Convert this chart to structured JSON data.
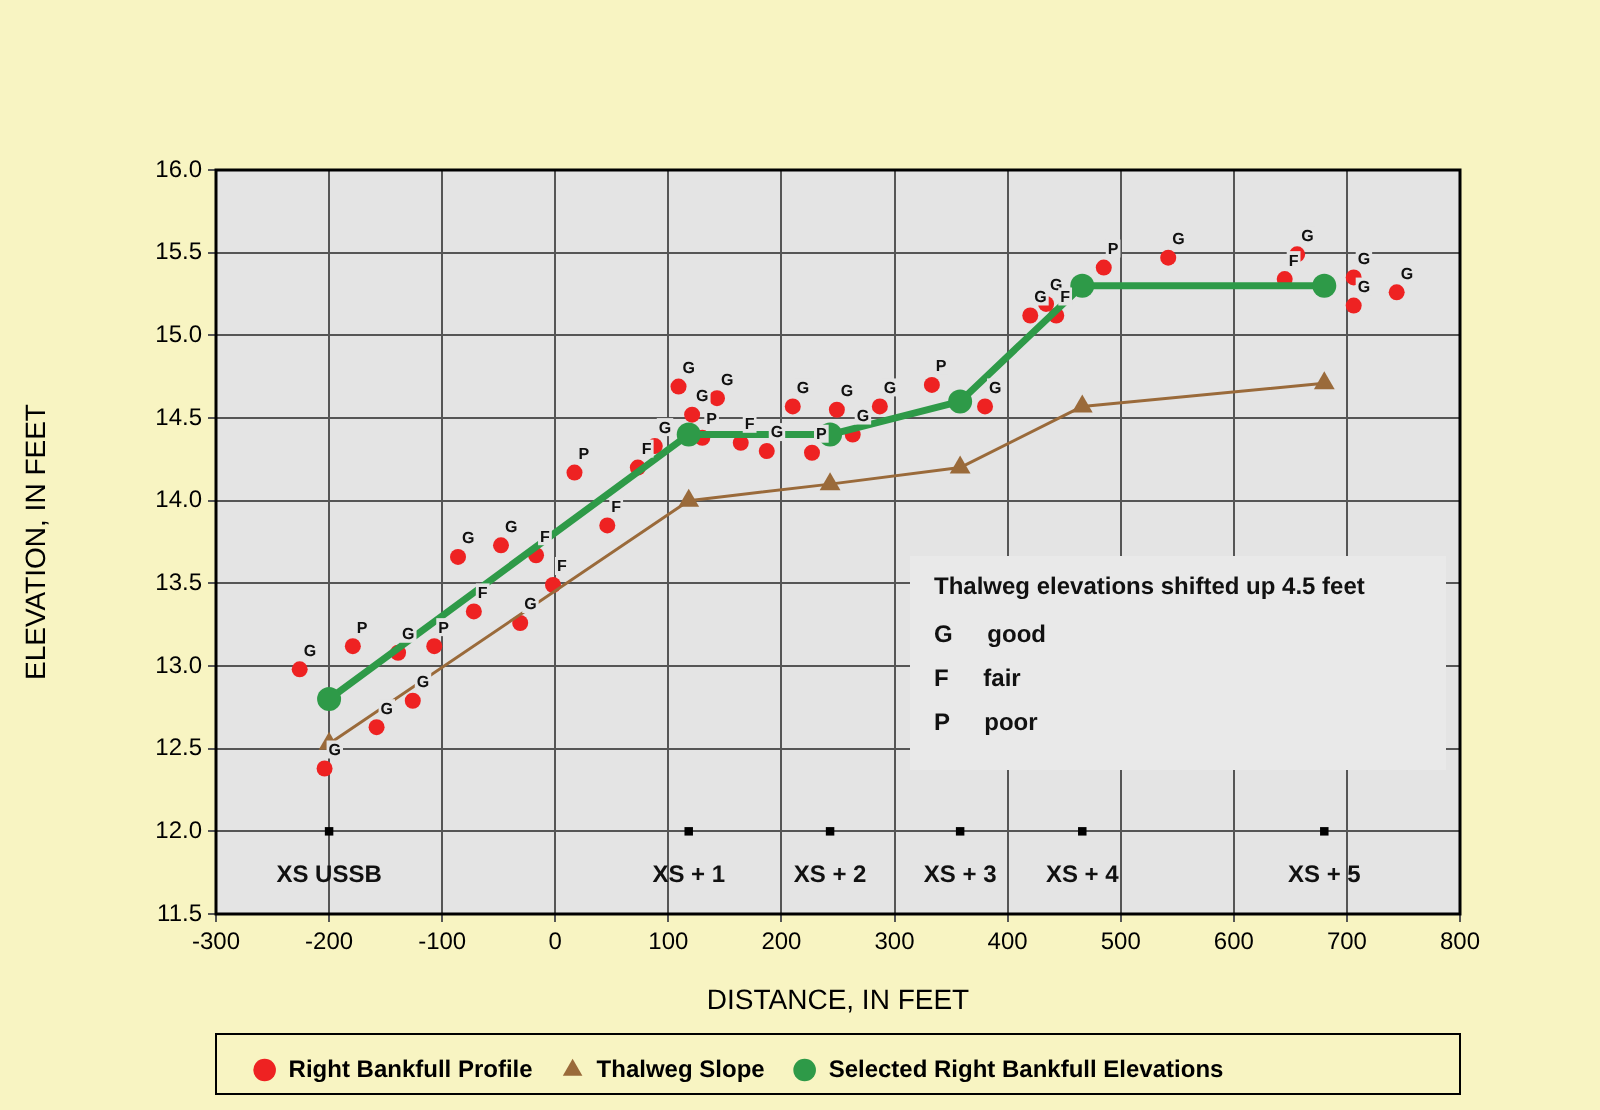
{
  "chart_data": {
    "type": "scatter",
    "xlabel": "DISTANCE, IN FEET",
    "ylabel": "ELEVATION, IN FEET",
    "xlim": [
      -300,
      800
    ],
    "xticks": [
      -300,
      -200,
      -100,
      0,
      100,
      200,
      300,
      400,
      500,
      600,
      700,
      800
    ],
    "ylim": [
      11.5,
      16
    ],
    "yticks": [
      11.5,
      {
        "value": 12,
        "label": "12.0"
      },
      12.5,
      {
        "value": 13,
        "label": "13.0"
      },
      13.5,
      {
        "value": 14,
        "label": "14.0"
      },
      14.5,
      {
        "value": 15,
        "label": "15.0"
      },
      15.5,
      {
        "value": 16,
        "label": "16.0"
      }
    ],
    "grid": true,
    "legend": "bottom",
    "annotations": [
      "Thalweg elevations shifted up 4.5 feet",
      "G good",
      "F fair",
      "P poor",
      {
        "text": "XS USSB",
        "x": -200,
        "y": 12
      },
      {
        "text": "XS + 1",
        "x": 118,
        "y": 12
      },
      {
        "text": "XS + 2",
        "x": 243,
        "y": 12
      },
      {
        "text": "XS + 3",
        "x": 358,
        "y": 12
      },
      {
        "text": "XS + 4",
        "x": 466,
        "y": 12
      },
      {
        "text": "XS + 5",
        "x": 680,
        "y": 12
      }
    ],
    "series": [
      {
        "name": "Right Bankfull Profile",
        "marker": "circle",
        "color": "#ee2222",
        "x": [
          -226,
          -204,
          -179,
          -158,
          -139,
          -126,
          -107,
          -86,
          -72,
          -48,
          -31,
          -17,
          -2,
          17,
          46,
          73,
          88,
          109,
          121,
          130,
          143,
          164,
          187,
          210,
          227,
          249,
          263,
          287,
          333,
          380,
          420,
          434,
          443,
          485,
          542,
          645,
          656,
          706,
          706,
          744
        ],
        "values": [
          12.98,
          12.38,
          13.12,
          12.63,
          13.08,
          12.79,
          13.12,
          13.66,
          13.33,
          13.73,
          13.26,
          13.67,
          13.49,
          14.17,
          13.85,
          14.2,
          14.33,
          14.69,
          14.52,
          14.38,
          14.62,
          14.35,
          14.3,
          14.57,
          14.29,
          14.55,
          14.4,
          14.57,
          14.7,
          14.57,
          15.12,
          15.19,
          15.12,
          15.41,
          15.47,
          15.34,
          15.49,
          15.35,
          15.18,
          15.26
        ],
        "value_labels": [
          "G",
          "G",
          "P",
          "G",
          "G",
          "G",
          "P",
          "G",
          "F",
          "G",
          "G",
          "F",
          "F",
          "P",
          "F",
          "F",
          "G",
          "G",
          "G",
          "P",
          "G",
          "F",
          "G",
          "G",
          "P",
          "G",
          "G",
          "G",
          "P",
          "G",
          "G",
          "G",
          "F",
          "P",
          "G",
          "F",
          "G",
          "G",
          "G",
          "G"
        ]
      },
      {
        "name": "Thalweg Slope",
        "type": "line",
        "marker": "triangle",
        "line_style": "solid",
        "color": "#9a6a3a",
        "x": [
          -200,
          118,
          243,
          358,
          466,
          680
        ],
        "values": [
          12.53,
          14.0,
          14.1,
          14.2,
          14.57,
          14.71
        ]
      },
      {
        "name": "Selected Right Bankfull Elevations",
        "type": "line",
        "marker": "circle",
        "line_style": "solid",
        "color": "#2e9a48",
        "x": [
          -200,
          118,
          243,
          358,
          466,
          680
        ],
        "values": [
          12.8,
          14.4,
          14.4,
          14.6,
          15.3,
          15.3
        ]
      },
      {
        "marker": "square",
        "color": "#000000",
        "x": [
          -200,
          118,
          243,
          358,
          466,
          680
        ],
        "values": [
          12,
          12,
          12,
          12,
          12,
          12
        ]
      }
    ]
  }
}
